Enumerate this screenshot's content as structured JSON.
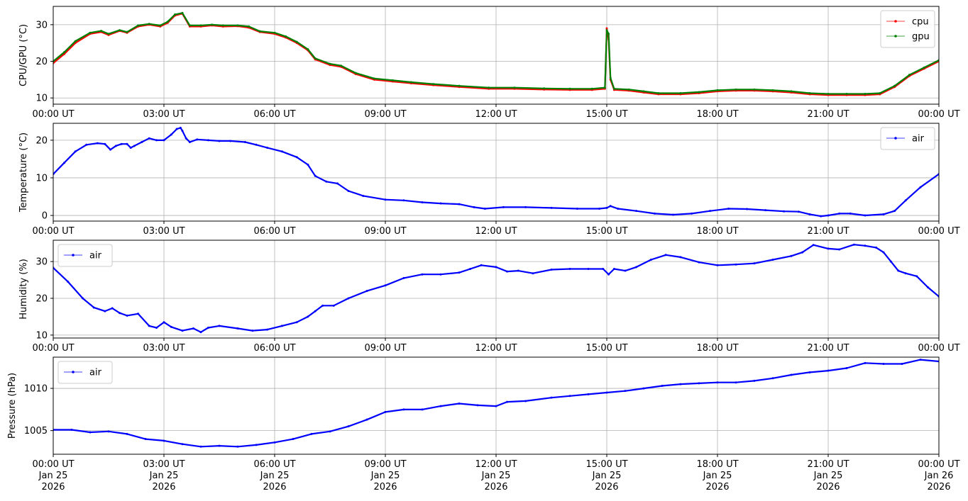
{
  "chart_data": [
    {
      "type": "line",
      "ylabel": "CPU/GPU (°C)",
      "ylim": [
        8.3,
        35
      ],
      "yticks": [
        10,
        20,
        30
      ],
      "legend": "top-right",
      "grid": true,
      "x_range": [
        "2026-01-25T00:00Z",
        "2026-01-26T00:00Z"
      ],
      "x_tick_labels": [
        "00:00 UT",
        "03:00 UT",
        "06:00 UT",
        "09:00 UT",
        "12:00 UT",
        "15:00 UT",
        "18:00 UT",
        "21:00 UT",
        "00:00 UT"
      ],
      "series": [
        {
          "name": "cpu",
          "color": "#ff0000",
          "x_hours": [
            0,
            0.3,
            0.6,
            1.0,
            1.3,
            1.5,
            1.8,
            2.0,
            2.3,
            2.6,
            2.9,
            3.1,
            3.3,
            3.5,
            3.7,
            4.0,
            4.3,
            4.6,
            5.0,
            5.3,
            5.6,
            6.0,
            6.3,
            6.6,
            6.9,
            7.1,
            7.5,
            7.8,
            8.2,
            8.7,
            9.2,
            9.7,
            10.3,
            11.0,
            11.8,
            12.5,
            13.3,
            14.0,
            14.6,
            14.95,
            15.0,
            15.05,
            15.1,
            15.2,
            15.6,
            16.0,
            16.4,
            17.0,
            17.5,
            18.0,
            18.5,
            19.0,
            19.5,
            20.0,
            20.5,
            21.0,
            21.5,
            22.0,
            22.4,
            22.8,
            23.2,
            23.6,
            24.0
          ],
          "values": [
            19.5,
            22,
            25,
            27.5,
            28,
            27.2,
            28.3,
            27.8,
            29.5,
            30,
            29.5,
            30.5,
            32.5,
            33,
            29.5,
            29.5,
            29.8,
            29.5,
            29.6,
            29.2,
            28,
            27.5,
            26.5,
            25,
            23,
            20.5,
            19,
            18.5,
            16.5,
            15,
            14.5,
            14,
            13.5,
            13,
            12.5,
            12.5,
            12.3,
            12.2,
            12.2,
            12.5,
            29,
            26,
            15,
            12.2,
            12,
            11.5,
            11,
            11,
            11.3,
            11.8,
            12,
            12,
            11.8,
            11.5,
            11,
            10.8,
            10.8,
            10.8,
            11,
            13,
            16,
            18,
            20
          ]
        },
        {
          "name": "gpu",
          "color": "#008000",
          "x_hours": [
            0,
            0.3,
            0.6,
            1.0,
            1.3,
            1.5,
            1.8,
            2.0,
            2.3,
            2.6,
            2.9,
            3.1,
            3.3,
            3.5,
            3.7,
            4.0,
            4.3,
            4.6,
            5.0,
            5.3,
            5.6,
            6.0,
            6.3,
            6.6,
            6.9,
            7.1,
            7.5,
            7.8,
            8.2,
            8.7,
            9.2,
            9.7,
            10.3,
            11.0,
            11.8,
            12.5,
            13.3,
            14.0,
            14.6,
            14.95,
            15.0,
            15.05,
            15.1,
            15.2,
            15.6,
            16.0,
            16.4,
            17.0,
            17.5,
            18.0,
            18.5,
            19.0,
            19.5,
            20.0,
            20.5,
            21.0,
            21.5,
            22.0,
            22.4,
            22.8,
            23.2,
            23.6,
            24.0
          ],
          "values": [
            20,
            22.5,
            25.5,
            27.8,
            28.3,
            27.5,
            28.5,
            28,
            29.8,
            30.2,
            29.8,
            30.8,
            32.8,
            33.2,
            29.8,
            29.8,
            30,
            29.8,
            29.8,
            29.5,
            28.2,
            27.8,
            26.8,
            25.3,
            23.3,
            20.8,
            19.3,
            18.8,
            16.8,
            15.3,
            14.8,
            14.3,
            13.8,
            13.3,
            12.8,
            12.8,
            12.6,
            12.5,
            12.5,
            12.8,
            28.5,
            27.5,
            15.5,
            12.5,
            12.3,
            11.8,
            11.3,
            11.3,
            11.6,
            12.1,
            12.3,
            12.3,
            12.1,
            11.8,
            11.3,
            11.1,
            11.1,
            11.1,
            11.3,
            13.3,
            16.3,
            18.3,
            20.3
          ]
        }
      ]
    },
    {
      "type": "line",
      "ylabel": "Temperature (°C)",
      "ylim": [
        -1.5,
        24.5
      ],
      "yticks": [
        0,
        10,
        20
      ],
      "legend": "top-right",
      "grid": true,
      "x_range": [
        "2026-01-25T00:00Z",
        "2026-01-26T00:00Z"
      ],
      "x_tick_labels": [
        "00:00 UT",
        "03:00 UT",
        "06:00 UT",
        "09:00 UT",
        "12:00 UT",
        "15:00 UT",
        "18:00 UT",
        "21:00 UT",
        "00:00 UT"
      ],
      "series": [
        {
          "name": "air",
          "color": "#0000ff",
          "x_hours": [
            0,
            0.3,
            0.6,
            0.9,
            1.2,
            1.4,
            1.55,
            1.7,
            1.85,
            2.0,
            2.1,
            2.2,
            2.4,
            2.6,
            2.8,
            3.0,
            3.2,
            3.35,
            3.45,
            3.5,
            3.6,
            3.7,
            3.9,
            4.2,
            4.5,
            4.8,
            5.2,
            5.5,
            5.8,
            6.2,
            6.6,
            6.9,
            7.1,
            7.4,
            7.7,
            8.0,
            8.4,
            9.0,
            9.5,
            10.0,
            10.5,
            11.0,
            11.4,
            11.7,
            12.2,
            12.8,
            13.5,
            14.2,
            14.8,
            15.0,
            15.1,
            15.3,
            15.8,
            16.3,
            16.8,
            17.3,
            17.8,
            18.3,
            18.8,
            19.3,
            19.8,
            20.2,
            20.5,
            20.8,
            21.0,
            21.3,
            21.6,
            22.0,
            22.5,
            22.8,
            23.1,
            23.5,
            24.0
          ],
          "values": [
            11,
            14,
            17,
            18.8,
            19.2,
            19,
            17.5,
            18.5,
            19,
            19,
            18,
            18.5,
            19.5,
            20.5,
            20,
            20,
            21.5,
            23,
            23.3,
            22.5,
            20.5,
            19.5,
            20.2,
            20,
            19.8,
            19.8,
            19.5,
            18.8,
            18,
            17,
            15.5,
            13.5,
            10.5,
            9,
            8.5,
            6.5,
            5.2,
            4.2,
            4,
            3.5,
            3.2,
            3,
            2.2,
            1.8,
            2.2,
            2.2,
            2,
            1.8,
            1.8,
            2,
            2.5,
            1.8,
            1.2,
            0.5,
            0.2,
            0.5,
            1.2,
            1.8,
            1.7,
            1.4,
            1.1,
            1,
            0.3,
            -0.2,
            0,
            0.5,
            0.5,
            0,
            0.3,
            1.2,
            4,
            7.5,
            11
          ]
        }
      ]
    },
    {
      "type": "line",
      "ylabel": "Humidity (%)",
      "ylim": [
        9.2,
        35.8
      ],
      "yticks": [
        10,
        20,
        30
      ],
      "legend": "top-left",
      "grid": true,
      "x_range": [
        "2026-01-25T00:00Z",
        "2026-01-26T00:00Z"
      ],
      "x_tick_labels": [
        "00:00 UT",
        "03:00 UT",
        "06:00 UT",
        "09:00 UT",
        "12:00 UT",
        "15:00 UT",
        "18:00 UT",
        "21:00 UT",
        "00:00 UT"
      ],
      "series": [
        {
          "name": "air",
          "color": "#0000ff",
          "x_hours": [
            0,
            0.4,
            0.8,
            1.1,
            1.4,
            1.6,
            1.8,
            2.0,
            2.3,
            2.6,
            2.8,
            3.0,
            3.2,
            3.5,
            3.8,
            4.0,
            4.2,
            4.5,
            5.0,
            5.4,
            5.8,
            6.2,
            6.6,
            6.9,
            7.1,
            7.3,
            7.6,
            8.0,
            8.5,
            9.0,
            9.5,
            10.0,
            10.5,
            11.0,
            11.3,
            11.6,
            12.0,
            12.3,
            12.6,
            13.0,
            13.5,
            14.0,
            14.5,
            14.9,
            15.05,
            15.2,
            15.5,
            15.8,
            16.2,
            16.6,
            17.0,
            17.5,
            18.0,
            18.5,
            19.0,
            19.5,
            20.0,
            20.3,
            20.6,
            21.0,
            21.3,
            21.7,
            22.0,
            22.3,
            22.5,
            22.7,
            22.9,
            23.1,
            23.4,
            23.7,
            24.0
          ],
          "values": [
            28.3,
            24.5,
            20,
            17.5,
            16.5,
            17.3,
            16,
            15.3,
            15.8,
            12.5,
            12,
            13.5,
            12.2,
            11.2,
            11.8,
            10.8,
            12,
            12.5,
            11.8,
            11.2,
            11.5,
            12.5,
            13.5,
            15,
            16.5,
            18,
            18,
            20,
            22,
            23.5,
            25.5,
            26.5,
            26.5,
            27,
            28,
            29,
            28.5,
            27.3,
            27.5,
            26.8,
            27.8,
            28,
            28,
            28,
            26.5,
            28,
            27.5,
            28.5,
            30.5,
            31.8,
            31.2,
            29.8,
            29,
            29.2,
            29.5,
            30.5,
            31.5,
            32.5,
            34.5,
            33.5,
            33.3,
            34.6,
            34.3,
            33.8,
            32.5,
            30,
            27.5,
            26.8,
            26,
            23,
            20.5
          ]
        }
      ]
    },
    {
      "type": "line",
      "ylabel": "Pressure (hPa)",
      "ylim": [
        1002.2,
        1013.7
      ],
      "yticks": [
        1005,
        1010
      ],
      "legend": "top-left",
      "grid": true,
      "x_range": [
        "2026-01-25T00:00Z",
        "2026-01-26T00:00Z"
      ],
      "x_tick_labels": [
        "00:00 UT",
        "03:00 UT",
        "06:00 UT",
        "09:00 UT",
        "12:00 UT",
        "15:00 UT",
        "18:00 UT",
        "21:00 UT",
        "00:00 UT"
      ],
      "x_tick_dates": [
        "Jan 25",
        "Jan 25",
        "Jan 25",
        "Jan 25",
        "Jan 25",
        "Jan 25",
        "Jan 25",
        "Jan 25",
        "Jan 26"
      ],
      "x_tick_years": [
        "2026",
        "2026",
        "2026",
        "2026",
        "2026",
        "2026",
        "2026",
        "2026",
        "2026"
      ],
      "series": [
        {
          "name": "air",
          "color": "#0000ff",
          "x_hours": [
            0,
            0.5,
            1.0,
            1.5,
            2.0,
            2.5,
            3.0,
            3.5,
            4.0,
            4.5,
            5.0,
            5.5,
            6.0,
            6.5,
            7.0,
            7.5,
            8.0,
            8.5,
            9.0,
            9.5,
            10.0,
            10.5,
            11.0,
            11.5,
            12.0,
            12.3,
            12.8,
            13.5,
            14.0,
            14.5,
            15.0,
            15.5,
            16.0,
            16.5,
            17.0,
            17.5,
            18.0,
            18.5,
            19.0,
            19.5,
            20.0,
            20.5,
            21.0,
            21.5,
            22.0,
            22.5,
            23.0,
            23.5,
            24.0
          ],
          "values": [
            1005.1,
            1005.1,
            1004.8,
            1004.9,
            1004.6,
            1004.0,
            1003.8,
            1003.4,
            1003.1,
            1003.2,
            1003.1,
            1003.3,
            1003.6,
            1004.0,
            1004.6,
            1004.9,
            1005.5,
            1006.3,
            1007.2,
            1007.5,
            1007.5,
            1007.9,
            1008.2,
            1008.0,
            1007.9,
            1008.4,
            1008.5,
            1008.9,
            1009.1,
            1009.3,
            1009.5,
            1009.7,
            1010.0,
            1010.3,
            1010.5,
            1010.6,
            1010.7,
            1010.7,
            1010.9,
            1011.2,
            1011.6,
            1011.9,
            1012.1,
            1012.4,
            1013.0,
            1012.9,
            1012.9,
            1013.4,
            1013.2
          ]
        }
      ]
    }
  ]
}
